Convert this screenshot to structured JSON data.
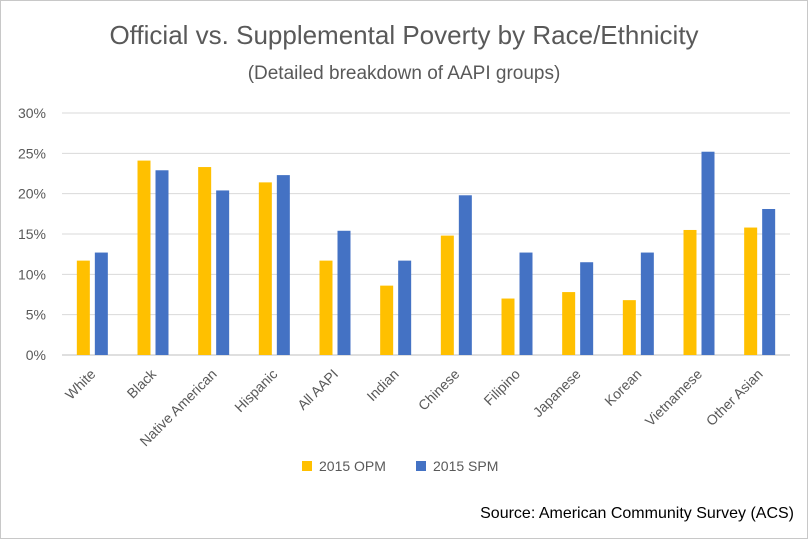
{
  "colors": {
    "opm": "#FFC000",
    "spm": "#4472C4",
    "gridline": "#d9d9d9",
    "axis": "#bfbfbf",
    "text": "#595959"
  },
  "chart_data": {
    "type": "bar",
    "title": "Official vs. Supplemental Poverty by Race/Ethnicity",
    "subtitle": "(Detailed breakdown of AAPI groups)",
    "source": "Source: American Community Survey (ACS)",
    "categories": [
      "White",
      "Black",
      "Native American",
      "Hispanic",
      "All AAPI",
      "Indian",
      "Chinese",
      "Filipino",
      "Japanese",
      "Korean",
      "Vietnamese",
      "Other Asian"
    ],
    "series": [
      {
        "name": "2015 OPM",
        "values": [
          11.7,
          24.1,
          23.3,
          21.4,
          11.7,
          8.6,
          14.8,
          7.0,
          7.8,
          6.8,
          15.5,
          15.8
        ]
      },
      {
        "name": "2015 SPM",
        "values": [
          12.7,
          22.9,
          20.4,
          22.3,
          15.4,
          11.7,
          19.8,
          12.7,
          11.5,
          12.7,
          25.2,
          18.1
        ]
      }
    ],
    "yticks": [
      "0%",
      "5%",
      "10%",
      "15%",
      "20%",
      "25%",
      "30%"
    ],
    "ylim": [
      0,
      30
    ],
    "legend_position": "bottom",
    "grid": true
  }
}
